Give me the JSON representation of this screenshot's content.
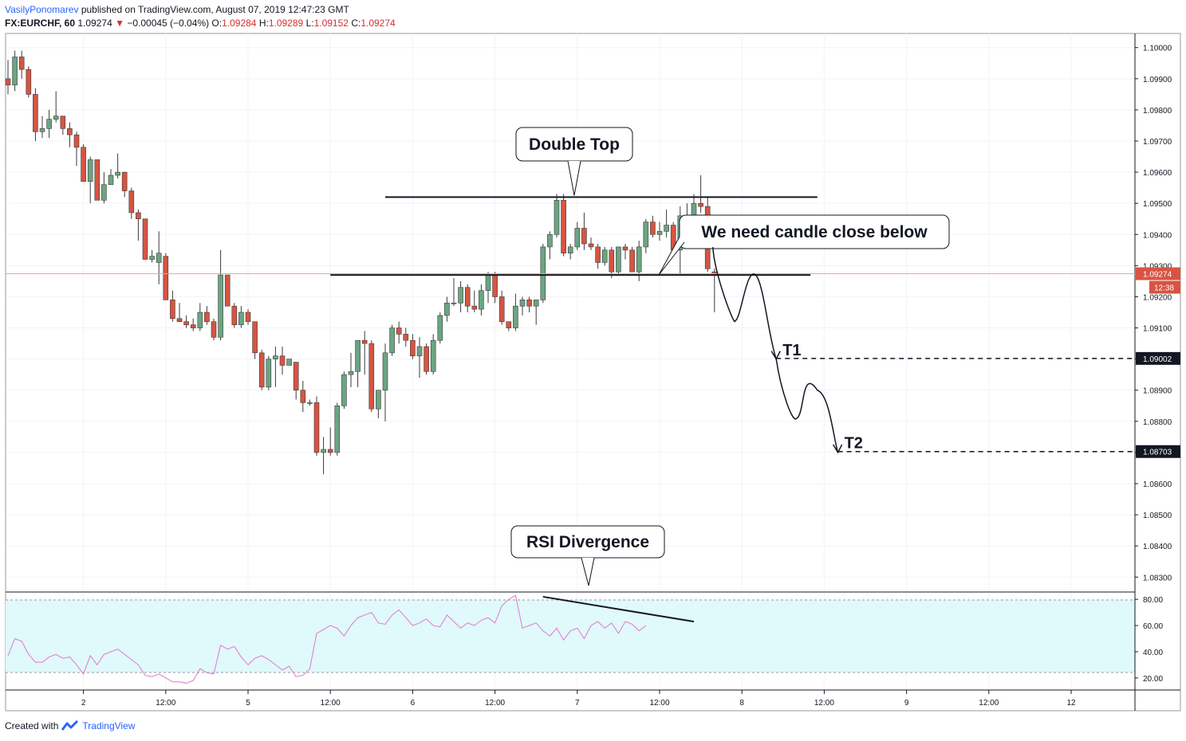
{
  "header": {
    "author": "VasilyPonomarev",
    "published": "published on TradingView.com, August 07, 2019 12:47:23 GMT",
    "symbol": "FX:EURCHF, 60",
    "last": "1.09274",
    "change_arrow": "▼",
    "change": "−0.00045 (−0.04%)",
    "o_label": "O:",
    "o_value": "1.09284",
    "h_label": "H:",
    "h_value": "1.09289",
    "l_label": "L:",
    "l_value": "1.09152",
    "c_label": "C:",
    "c_value": "1.09274"
  },
  "footer": {
    "created_with": "Created with",
    "brand": "TradingView"
  },
  "colors": {
    "up": "#6ba583",
    "down": "#d75442",
    "rsi_line": "#e277c9",
    "rsi_band": "#e0f9fb",
    "accent": "#2962ff"
  },
  "chart_data": {
    "type": "candlestick",
    "symbol": "FX:EURCHF",
    "interval": "60",
    "ylim": [
      1.0827,
      1.1003
    ],
    "price_ticks": [
      "1.10000",
      "1.09900",
      "1.09800",
      "1.09700",
      "1.09600",
      "1.09500",
      "1.09400",
      "1.09300",
      "1.09200",
      "1.09100",
      "1.09000",
      "1.08900",
      "1.08800",
      "1.08700",
      "1.08600",
      "1.08500",
      "1.08400",
      "1.08300"
    ],
    "x_ticks": [
      "2",
      "12:00",
      "5",
      "12:00",
      "6",
      "12:00",
      "7",
      "12:00",
      "8",
      "12:00",
      "9",
      "12:00",
      "12"
    ],
    "x_tick_bars": [
      11,
      23,
      35,
      47,
      59,
      71,
      83,
      95,
      107,
      119,
      131,
      143,
      155
    ],
    "current_price_label": "1.09274",
    "countdown_label": "12:38",
    "candles": [
      [
        1.099,
        1.0996,
        1.0985,
        1.0988
      ],
      [
        1.0988,
        1.0999,
        1.0986,
        1.0997
      ],
      [
        1.0997,
        1.0999,
        1.099,
        1.0993
      ],
      [
        1.0993,
        1.0994,
        1.0984,
        1.0985
      ],
      [
        1.0985,
        1.0987,
        1.097,
        1.0973
      ],
      [
        1.0973,
        1.0978,
        1.0971,
        1.0974
      ],
      [
        1.0974,
        1.098,
        1.0971,
        1.0977
      ],
      [
        1.0977,
        1.0986,
        1.0976,
        1.0978
      ],
      [
        1.0978,
        1.0978,
        1.0972,
        1.0974
      ],
      [
        1.0974,
        1.0976,
        1.0968,
        1.0972
      ],
      [
        1.0972,
        1.0973,
        1.0962,
        1.0968
      ],
      [
        1.0968,
        1.0969,
        1.0957,
        1.0957
      ],
      [
        1.0957,
        1.0965,
        1.095,
        1.0964
      ],
      [
        1.0964,
        1.0964,
        1.0952,
        1.0951
      ],
      [
        1.0951,
        1.096,
        1.095,
        1.0956
      ],
      [
        1.0956,
        1.0961,
        1.0956,
        1.0959
      ],
      [
        1.0959,
        1.0966,
        1.0958,
        1.096
      ],
      [
        1.096,
        1.096,
        1.0952,
        1.0954
      ],
      [
        1.0954,
        1.0955,
        1.0945,
        1.0947
      ],
      [
        1.0947,
        1.0948,
        1.0938,
        1.0945
      ],
      [
        1.0945,
        1.0945,
        1.0932,
        1.0932
      ],
      [
        1.0932,
        1.0935,
        1.0931,
        1.0933
      ],
      [
        1.0931,
        1.0941,
        1.0924,
        1.0934
      ],
      [
        1.0933,
        1.0934,
        1.0919,
        1.0919
      ],
      [
        1.0919,
        1.0922,
        1.0912,
        1.0913
      ],
      [
        1.0913,
        1.0918,
        1.0912,
        1.0912
      ],
      [
        1.0912,
        1.0914,
        1.091,
        1.0911
      ],
      [
        1.0911,
        1.0913,
        1.0909,
        1.091
      ],
      [
        1.091,
        1.0918,
        1.0909,
        1.0915
      ],
      [
        1.0915,
        1.0917,
        1.0911,
        1.0912
      ],
      [
        1.0912,
        1.0913,
        1.0906,
        1.0907
      ],
      [
        1.0907,
        1.0935,
        1.0906,
        1.0927
      ],
      [
        1.0927,
        1.0927,
        1.0917,
        1.0917
      ],
      [
        1.0917,
        1.0918,
        1.091,
        1.0911
      ],
      [
        1.0911,
        1.0917,
        1.091,
        1.0915
      ],
      [
        1.0915,
        1.0916,
        1.0911,
        1.0912
      ],
      [
        1.0912,
        1.0912,
        1.09,
        1.0902
      ],
      [
        1.0902,
        1.0903,
        1.089,
        1.0891
      ],
      [
        1.0891,
        1.0901,
        1.089,
        1.09
      ],
      [
        1.09,
        1.0904,
        1.0891,
        1.0901
      ],
      [
        1.0901,
        1.0904,
        1.0895,
        1.0898
      ],
      [
        1.0898,
        1.09,
        1.0898,
        1.09
      ],
      [
        1.0899,
        1.0899,
        1.0887,
        1.089
      ],
      [
        1.089,
        1.0893,
        1.0883,
        1.0886
      ],
      [
        1.0886,
        1.0887,
        1.0885,
        1.0886
      ],
      [
        1.0886,
        1.0888,
        1.0869,
        1.087
      ],
      [
        1.087,
        1.0875,
        1.0863,
        1.0871
      ],
      [
        1.0871,
        1.0878,
        1.0869,
        1.087
      ],
      [
        1.087,
        1.0886,
        1.0869,
        1.0885
      ],
      [
        1.0885,
        1.0896,
        1.0884,
        1.0895
      ],
      [
        1.0895,
        1.0902,
        1.0891,
        1.0896
      ],
      [
        1.0896,
        1.0906,
        1.0891,
        1.0906
      ],
      [
        1.0906,
        1.0909,
        1.0895,
        1.0905
      ],
      [
        1.0905,
        1.0906,
        1.0883,
        1.0884
      ],
      [
        1.0884,
        1.089,
        1.0881,
        1.089
      ],
      [
        1.089,
        1.0905,
        1.088,
        1.0902
      ],
      [
        1.0902,
        1.0911,
        1.0901,
        1.091
      ],
      [
        1.091,
        1.0912,
        1.0905,
        1.0908
      ],
      [
        1.0908,
        1.091,
        1.0904,
        1.0906
      ],
      [
        1.0906,
        1.0908,
        1.09,
        1.0901
      ],
      [
        1.0901,
        1.0907,
        1.0894,
        1.0904
      ],
      [
        1.0904,
        1.0905,
        1.0895,
        1.0896
      ],
      [
        1.0896,
        1.0908,
        1.0895,
        1.0906
      ],
      [
        1.0906,
        1.0915,
        1.0905,
        1.0914
      ],
      [
        1.0914,
        1.092,
        1.0912,
        1.0918
      ],
      [
        1.0918,
        1.0926,
        1.0917,
        1.0918
      ],
      [
        1.0918,
        1.0925,
        1.0915,
        1.0923
      ],
      [
        1.0923,
        1.0924,
        1.0915,
        1.0917
      ],
      [
        1.0917,
        1.0922,
        1.0915,
        1.0916
      ],
      [
        1.0916,
        1.0924,
        1.0914,
        1.0922
      ],
      [
        1.0922,
        1.0928,
        1.0918,
        1.0927
      ],
      [
        1.0927,
        1.0928,
        1.0918,
        1.092
      ],
      [
        1.092,
        1.0922,
        1.0911,
        1.0912
      ],
      [
        1.0912,
        1.0912,
        1.0909,
        1.091
      ],
      [
        1.091,
        1.0921,
        1.0909,
        1.0917
      ],
      [
        1.0917,
        1.092,
        1.0914,
        1.0919
      ],
      [
        1.0919,
        1.092,
        1.0915,
        1.0917
      ],
      [
        1.0917,
        1.0919,
        1.0911,
        1.0919
      ],
      [
        1.0919,
        1.0937,
        1.0918,
        1.0936
      ],
      [
        1.0936,
        1.0941,
        1.0932,
        1.094
      ],
      [
        1.094,
        1.0953,
        1.0939,
        1.0951
      ],
      [
        1.0951,
        1.0953,
        1.0933,
        1.0934
      ],
      [
        1.0934,
        1.0937,
        1.0932,
        1.0936
      ],
      [
        1.0936,
        1.0944,
        1.0935,
        1.0942
      ],
      [
        1.0942,
        1.0947,
        1.0935,
        1.0937
      ],
      [
        1.0937,
        1.0939,
        1.0935,
        1.0936
      ],
      [
        1.0936,
        1.0937,
        1.0929,
        1.0931
      ],
      [
        1.0931,
        1.0936,
        1.093,
        1.0935
      ],
      [
        1.0935,
        1.0936,
        1.0926,
        1.0928
      ],
      [
        1.0928,
        1.0936,
        1.0927,
        1.0936
      ],
      [
        1.0936,
        1.0937,
        1.0932,
        1.0935
      ],
      [
        1.0935,
        1.0936,
        1.0928,
        1.0928
      ],
      [
        1.0928,
        1.0938,
        1.0925,
        1.0936
      ],
      [
        1.0936,
        1.0945,
        1.0934,
        1.0944
      ],
      [
        1.0944,
        1.0946,
        1.0939,
        1.094
      ],
      [
        1.094,
        1.0944,
        1.0938,
        1.0941
      ],
      [
        1.0941,
        1.0948,
        1.0939,
        1.0943
      ],
      [
        1.0943,
        1.0944,
        1.0934,
        1.0935
      ],
      [
        1.0935,
        1.0949,
        1.0927,
        1.0946
      ],
      [
        1.0946,
        1.095,
        1.0941,
        1.0942
      ],
      [
        1.0942,
        1.0953,
        1.0941,
        1.095
      ],
      [
        1.095,
        1.0959,
        1.0947,
        1.0949
      ],
      [
        1.0949,
        1.0952,
        1.0928,
        1.0929
      ],
      [
        1.0928,
        1.0929,
        1.0915,
        1.0927
      ]
    ],
    "rsi": {
      "levels": [
        80,
        20
      ],
      "ticks": [
        "80.00",
        "60.00",
        "40.00",
        "20.00"
      ],
      "ylim": [
        12,
        85
      ],
      "values": [
        37,
        50,
        48,
        38,
        32,
        32,
        36,
        38,
        35,
        36,
        30,
        23,
        37,
        30,
        38,
        40,
        42,
        38,
        34,
        30,
        22,
        21,
        23,
        20,
        17,
        17,
        16,
        18,
        27,
        24,
        23,
        45,
        42,
        44,
        36,
        30,
        35,
        37,
        34,
        30,
        26,
        29,
        21,
        22,
        27,
        54,
        57,
        60,
        58,
        52,
        60,
        66,
        68,
        70,
        62,
        61,
        68,
        72,
        66,
        60,
        62,
        65,
        60,
        59,
        68,
        63,
        58,
        62,
        60,
        64,
        66,
        62,
        75,
        80,
        83,
        58,
        60,
        62,
        56,
        52,
        58,
        49,
        56,
        58,
        50,
        60,
        63,
        58,
        62,
        54,
        63,
        61,
        56,
        60
      ]
    },
    "annotations": {
      "double_top": "Double Top",
      "candle_close": "We need candle close below",
      "rsi_divergence": "RSI Divergence",
      "t1_label": "T1",
      "t2_label": "T2",
      "resistance_level": 1.0952,
      "support_level": 1.0927,
      "t1_price": 1.09002,
      "t2_price": 1.08703,
      "t1_price_label": "1.09002",
      "t2_price_label": "1.08703",
      "projection_path": [
        [
          103,
          1.0927
        ],
        [
          106,
          1.0913
        ],
        [
          109,
          1.0927
        ],
        [
          112,
          1.09
        ],
        [
          115,
          1.0881
        ],
        [
          118,
          1.089
        ],
        [
          121,
          1.087
        ]
      ],
      "rsi_divergence_line": [
        [
          78,
          82
        ],
        [
          100,
          63
        ]
      ]
    }
  }
}
